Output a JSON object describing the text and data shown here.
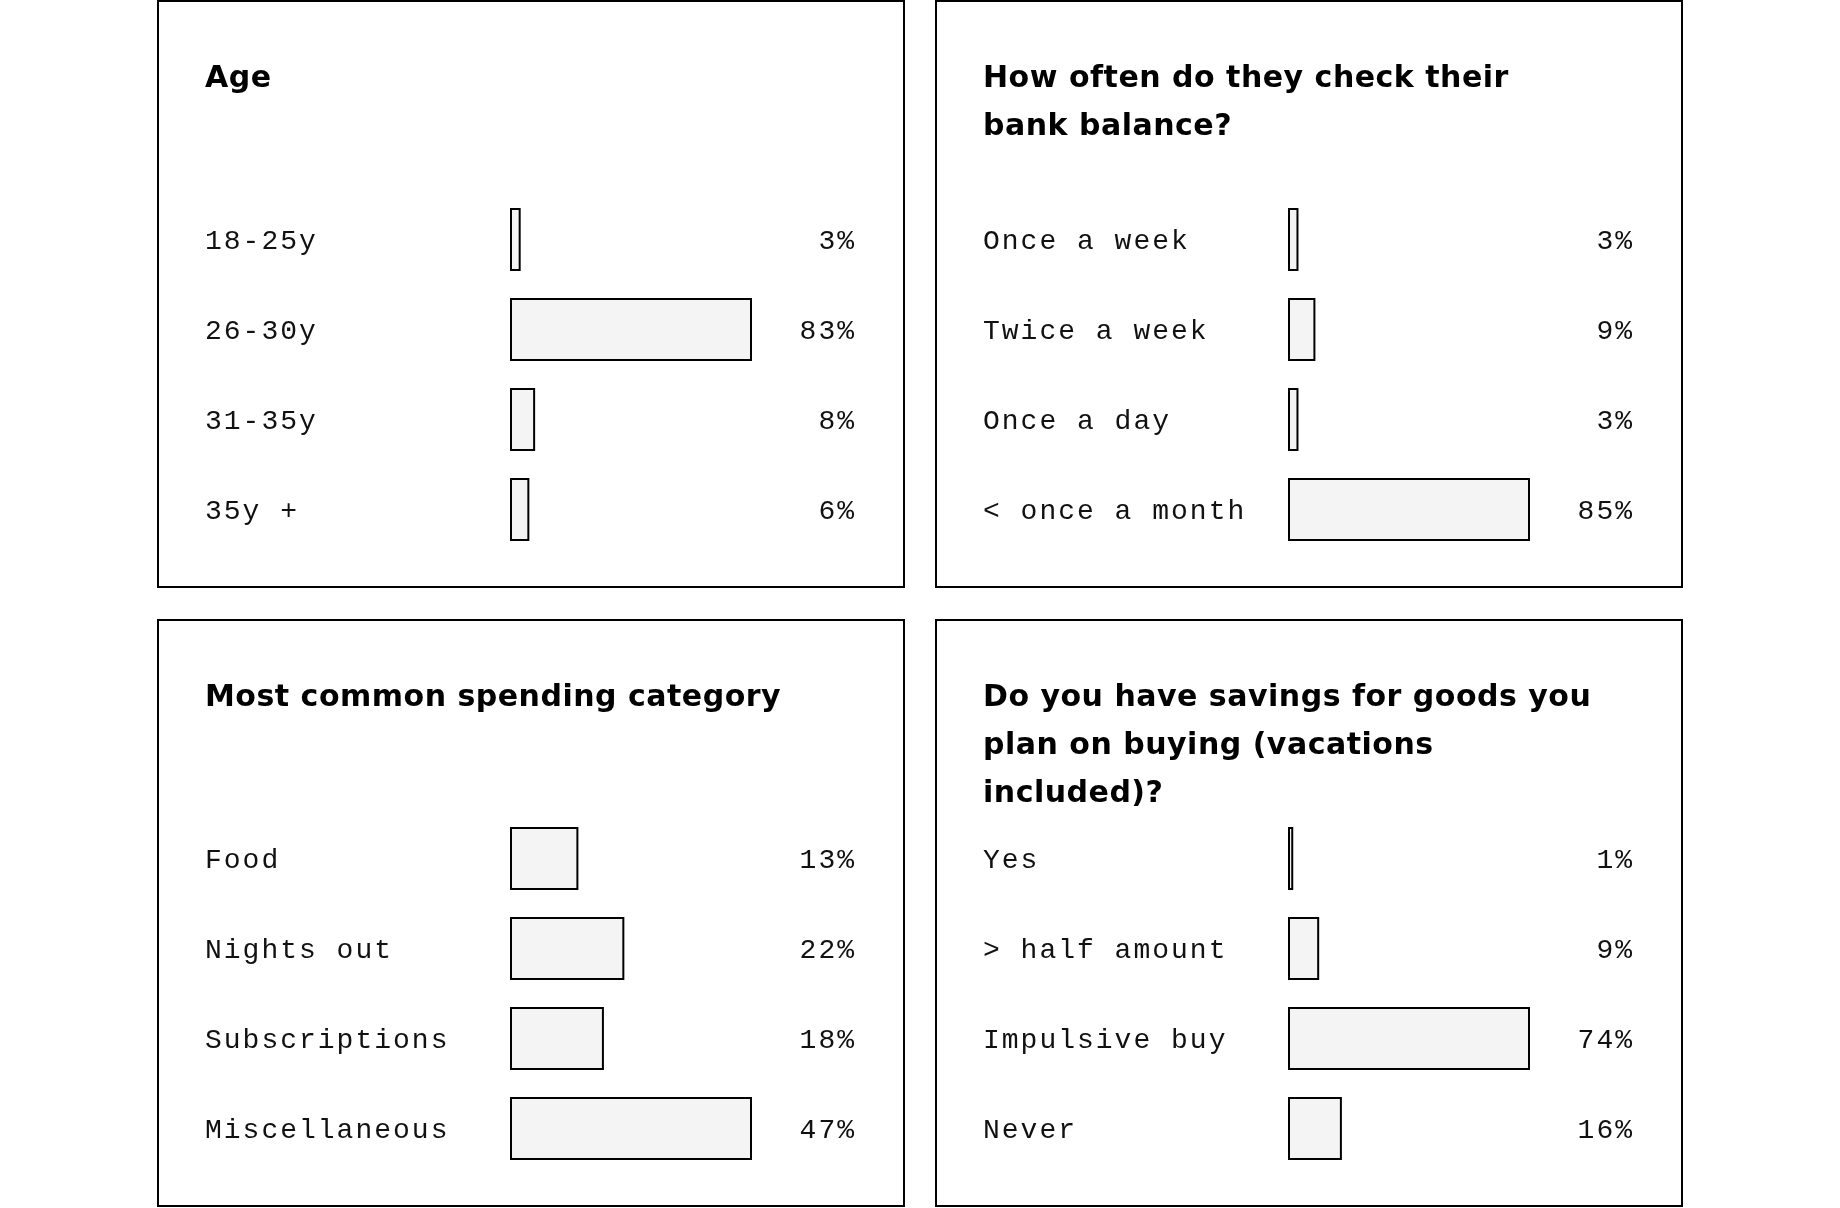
{
  "chart_data": [
    {
      "type": "bar",
      "orientation": "horizontal",
      "title": "Age",
      "categories": [
        "18-25y",
        "26-30y",
        "31-35y",
        "35y +"
      ],
      "values": [
        3,
        83,
        8,
        6
      ],
      "value_labels": [
        "3%",
        "83%",
        "8%",
        "6%"
      ],
      "color": "#f4f4f4"
    },
    {
      "type": "bar",
      "orientation": "horizontal",
      "title": "How often do they check their bank balance?",
      "categories": [
        "Once a week",
        "Twice a week",
        "Once a day",
        "< once a month"
      ],
      "values": [
        3,
        9,
        3,
        85
      ],
      "value_labels": [
        "3%",
        "9%",
        "3%",
        "85%"
      ],
      "color": "#f4f4f4"
    },
    {
      "type": "bar",
      "orientation": "horizontal",
      "title": "Most common spending category",
      "categories": [
        "Food",
        "Nights out",
        "Subscriptions",
        "Miscellaneous"
      ],
      "values": [
        13,
        22,
        18,
        47
      ],
      "value_labels": [
        "13%",
        "22%",
        "18%",
        "47%"
      ],
      "color": "#f4f4f4"
    },
    {
      "type": "bar",
      "orientation": "horizontal",
      "title": "Do you have savings for goods you plan on buying (vacations included)?",
      "categories": [
        "Yes",
        "> half amount",
        "Impulsive buy",
        "Never"
      ],
      "values": [
        1,
        9,
        74,
        16
      ],
      "value_labels": [
        "1%",
        "9%",
        "74%",
        "16%"
      ],
      "color": "#f4f4f4"
    }
  ]
}
